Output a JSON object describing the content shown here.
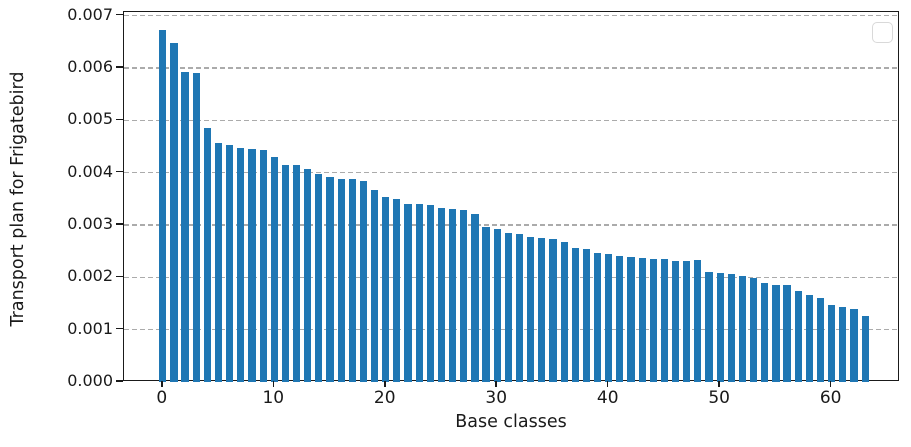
{
  "chart_data": {
    "type": "bar",
    "title": "",
    "xlabel": "Base classes",
    "ylabel": "Transport plan for Frigatebird",
    "x": [
      0,
      1,
      2,
      3,
      4,
      5,
      6,
      7,
      8,
      9,
      10,
      11,
      12,
      13,
      14,
      15,
      16,
      17,
      18,
      19,
      20,
      21,
      22,
      23,
      24,
      25,
      26,
      27,
      28,
      29,
      30,
      31,
      32,
      33,
      34,
      35,
      36,
      37,
      38,
      39,
      40,
      41,
      42,
      43,
      44,
      45,
      46,
      47,
      48,
      49,
      50,
      51,
      52,
      53,
      54,
      55,
      56,
      57,
      58,
      59,
      60,
      61,
      62,
      63
    ],
    "values": [
      0.00673,
      0.00648,
      0.00592,
      0.0059,
      0.00486,
      0.00457,
      0.00452,
      0.00447,
      0.00445,
      0.00443,
      0.00429,
      0.00415,
      0.00414,
      0.00407,
      0.00398,
      0.00391,
      0.00388,
      0.00387,
      0.00384,
      0.00366,
      0.00354,
      0.0035,
      0.00341,
      0.0034,
      0.00338,
      0.00333,
      0.00331,
      0.00329,
      0.00321,
      0.00297,
      0.00293,
      0.00284,
      0.00282,
      0.00278,
      0.00276,
      0.00274,
      0.00268,
      0.00256,
      0.00254,
      0.00247,
      0.00244,
      0.00241,
      0.00238,
      0.00236,
      0.00235,
      0.00235,
      0.00231,
      0.00231,
      0.00233,
      0.0021,
      0.00209,
      0.00206,
      0.00203,
      0.00199,
      0.00189,
      0.00186,
      0.00186,
      0.00174,
      0.00167,
      0.0016,
      0.00148,
      0.00144,
      0.0014,
      0.00126
    ],
    "ylim": [
      0,
      0.00707
    ],
    "yticks": [
      {
        "value": 0.0,
        "label": "0.000"
      },
      {
        "value": 0.001,
        "label": "0.001"
      },
      {
        "value": 0.002,
        "label": "0.002"
      },
      {
        "value": 0.003,
        "label": "0.003"
      },
      {
        "value": 0.004,
        "label": "0.004"
      },
      {
        "value": 0.005,
        "label": "0.005"
      },
      {
        "value": 0.006,
        "label": "0.006"
      },
      {
        "value": 0.007,
        "label": "0.007"
      }
    ],
    "xticks": [
      {
        "value": 0,
        "label": "0"
      },
      {
        "value": 10,
        "label": "10"
      },
      {
        "value": 20,
        "label": "20"
      },
      {
        "value": 30,
        "label": "30"
      },
      {
        "value": 40,
        "label": "40"
      },
      {
        "value": 50,
        "label": "50"
      },
      {
        "value": 60,
        "label": "60"
      }
    ],
    "grid": true,
    "legend": {
      "visible": true,
      "entries": [],
      "position": "upper right"
    },
    "colors": {
      "bar": "#1f77b4",
      "grid": "#ababab",
      "spine": "#1a1a1a",
      "legend_border": "#d9d9d9"
    }
  }
}
